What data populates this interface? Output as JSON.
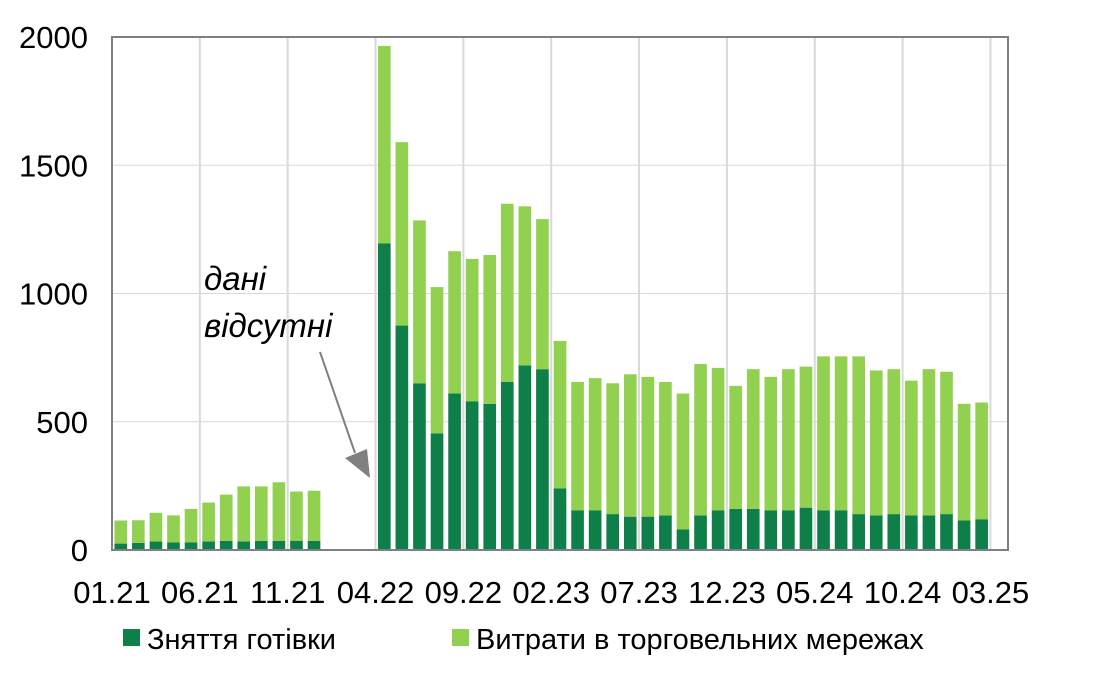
{
  "chart_data": {
    "type": "bar",
    "stacked": true,
    "title": "",
    "xlabel": "",
    "ylabel": "",
    "ylim": [
      0,
      2000
    ],
    "yticks": [
      0,
      500,
      1000,
      1500,
      2000
    ],
    "grid": "vertical",
    "legend_position": "bottom",
    "x_tick_labels": [
      "01.21",
      "06.21",
      "11.21",
      "04.22",
      "09.22",
      "02.23",
      "07.23",
      "12.23",
      "05.24",
      "10.24",
      "03.25"
    ],
    "categories": [
      "01.21",
      "02.21",
      "03.21",
      "04.21",
      "05.21",
      "06.21",
      "07.21",
      "08.21",
      "09.21",
      "10.21",
      "11.21",
      "12.21",
      "01.22",
      "02.22",
      "03.22",
      "04.22",
      "05.22",
      "06.22",
      "07.22",
      "08.22",
      "09.22",
      "10.22",
      "11.22",
      "12.22",
      "01.23",
      "02.23",
      "03.23",
      "04.23",
      "05.23",
      "06.23",
      "07.23",
      "08.23",
      "09.23",
      "10.23",
      "11.23",
      "12.23",
      "01.24",
      "02.24",
      "03.24",
      "04.24",
      "05.24",
      "06.24",
      "07.24",
      "08.24",
      "09.24",
      "10.24",
      "11.24",
      "12.24",
      "01.25",
      "02.25",
      "03.25"
    ],
    "series": [
      {
        "name": "Зняття готівки",
        "color": "#0e7f48",
        "values": [
          25,
          28,
          33,
          30,
          30,
          33,
          36,
          33,
          36,
          36,
          36,
          36,
          null,
          null,
          null,
          1195,
          875,
          650,
          455,
          610,
          580,
          570,
          655,
          720,
          705,
          240,
          155,
          155,
          140,
          130,
          130,
          135,
          80,
          135,
          155,
          160,
          160,
          155,
          155,
          165,
          155,
          155,
          140,
          135,
          140,
          135,
          135,
          140,
          115,
          120,
          null
        ]
      },
      {
        "name": "Витрати в торговельних мережах",
        "color": "#92d050",
        "values": [
          90,
          88,
          112,
          105,
          130,
          152,
          180,
          215,
          212,
          228,
          192,
          195,
          null,
          null,
          null,
          770,
          715,
          635,
          570,
          555,
          555,
          580,
          695,
          620,
          585,
          575,
          500,
          515,
          510,
          555,
          545,
          520,
          530,
          590,
          555,
          480,
          545,
          520,
          550,
          550,
          600,
          600,
          615,
          565,
          565,
          525,
          570,
          555,
          455,
          455,
          null
        ]
      }
    ],
    "annotation": {
      "lines": [
        "дані",
        "відсутні"
      ],
      "arrow_color": "#808080"
    }
  },
  "legend": {
    "items": [
      {
        "label": "Зняття готівки",
        "color": "#0e7f48"
      },
      {
        "label": "Витрати в торговельних мережах",
        "color": "#92d050"
      }
    ]
  }
}
